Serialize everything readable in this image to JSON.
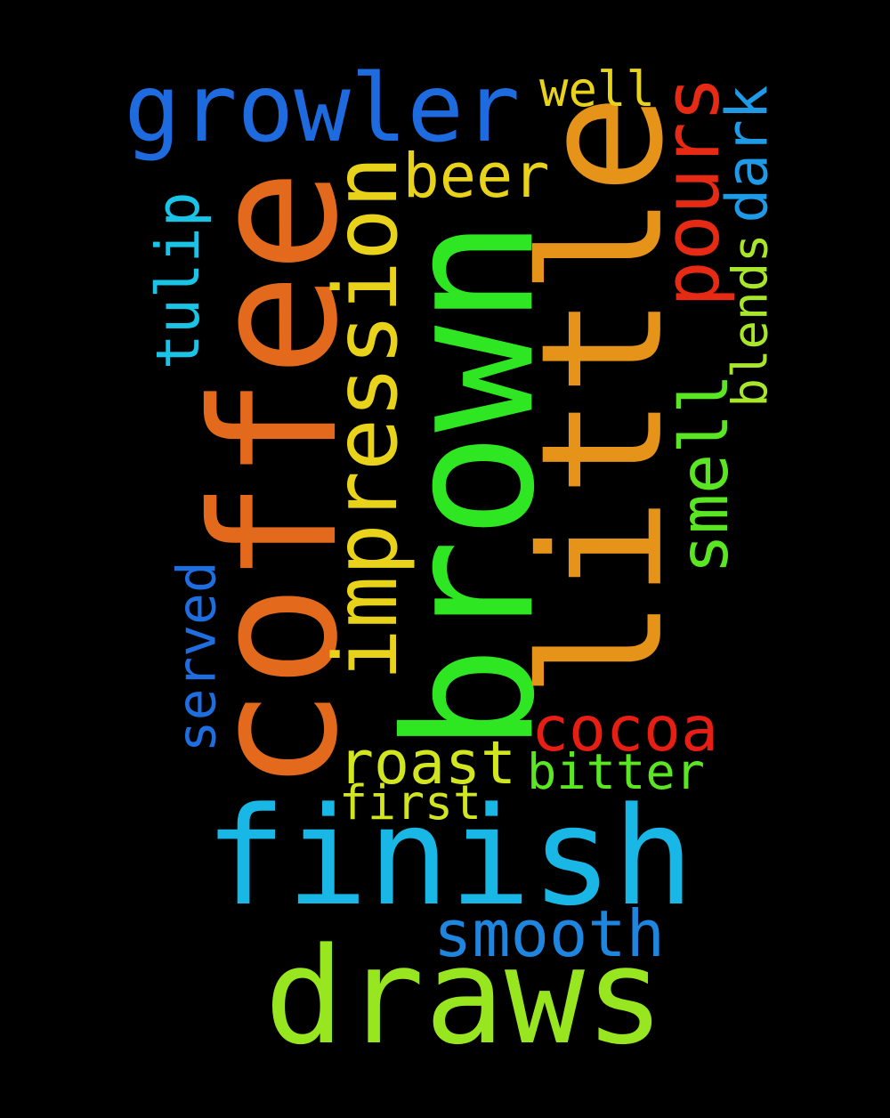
{
  "words": [
    {
      "text": "brown",
      "color": "#2ee622",
      "orientation": "vertical"
    },
    {
      "text": "coffee",
      "color": "#e36a1c",
      "orientation": "vertical"
    },
    {
      "text": "little",
      "color": "#e6931a",
      "orientation": "vertical"
    },
    {
      "text": "impression",
      "color": "#e8d21a",
      "orientation": "vertical"
    },
    {
      "text": "growler",
      "color": "#1e6be0",
      "orientation": "horizontal"
    },
    {
      "text": "finish",
      "color": "#19b7e6",
      "orientation": "horizontal"
    },
    {
      "text": "draws",
      "color": "#97e620",
      "orientation": "horizontal"
    },
    {
      "text": "pours",
      "color": "#e62a14",
      "orientation": "vertical"
    },
    {
      "text": "smell",
      "color": "#5ae622",
      "orientation": "vertical"
    },
    {
      "text": "tulip",
      "color": "#19c4e6",
      "orientation": "vertical"
    },
    {
      "text": "served",
      "color": "#1f6ee0",
      "orientation": "vertical"
    },
    {
      "text": "dark",
      "color": "#1f9ae6",
      "orientation": "vertical"
    },
    {
      "text": "blends",
      "color": "#a8e62b",
      "orientation": "vertical"
    },
    {
      "text": "beer",
      "color": "#e8d21a",
      "orientation": "horizontal"
    },
    {
      "text": "well",
      "color": "#e8d21a",
      "orientation": "horizontal"
    },
    {
      "text": "cocoa",
      "color": "#e61e14",
      "orientation": "horizontal"
    },
    {
      "text": "roast",
      "color": "#d2e620",
      "orientation": "horizontal"
    },
    {
      "text": "bitter",
      "color": "#5ae622",
      "orientation": "horizontal"
    },
    {
      "text": "first",
      "color": "#d2e620",
      "orientation": "horizontal"
    },
    {
      "text": "smooth",
      "color": "#1f86e0",
      "orientation": "horizontal"
    }
  ]
}
